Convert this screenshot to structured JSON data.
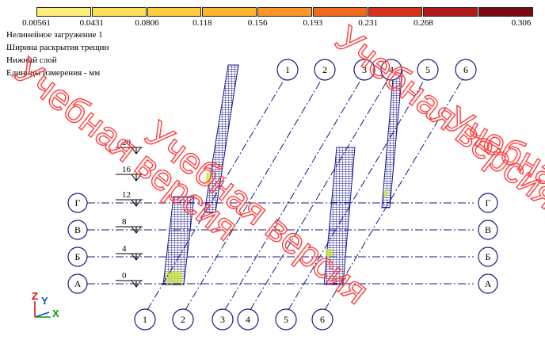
{
  "scale": {
    "colors": [
      "#fff07a",
      "#ffe05a",
      "#ffcf40",
      "#ffb52e",
      "#ff9628",
      "#f26a1e",
      "#d8321c",
      "#b01a18",
      "#7a0a10"
    ],
    "labels": [
      "0.00561",
      "0.0431",
      "0.0806",
      "0.118",
      "0.156",
      "0.193",
      "0.231",
      "0.268",
      "0.306"
    ]
  },
  "info": {
    "line1": "Нелинейное загружение 1",
    "line2": "Ширина раскрытия трещин",
    "line3": "Нижний слой",
    "line4": "Единицы измерения - мм"
  },
  "axes": {
    "numbered_top": [
      "1",
      "2",
      "3",
      "4",
      "5",
      "6"
    ],
    "numbered_bottom": [
      "1",
      "2",
      "3",
      "4",
      "5",
      "6"
    ],
    "lettered": [
      "Г",
      "В",
      "Б",
      "А"
    ]
  },
  "levels": [
    "20",
    "16",
    "12",
    "8",
    "4",
    "0"
  ],
  "triad": {
    "z": "Z",
    "y": "Y",
    "x": "X"
  },
  "watermark": {
    "text1": "Учебная версия",
    "text2": "Учебная версия",
    "text3": "Учебная версия",
    "text4": "Учебная версия"
  },
  "colors": {
    "axis_line": "#1a1a80",
    "mesh": "#1a1a90",
    "watermark": "#ff3c3c"
  }
}
